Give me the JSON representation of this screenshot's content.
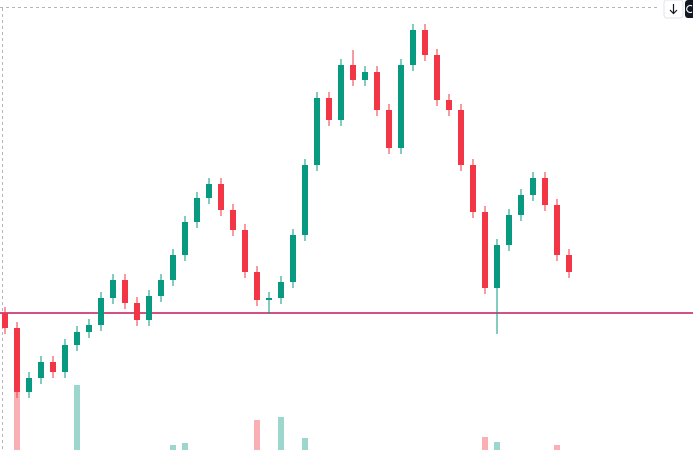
{
  "chart_data": {
    "type": "candlestick",
    "open": [
      137,
      122,
      58,
      72,
      88,
      78,
      105,
      118,
      125,
      152,
      170,
      147,
      130,
      154,
      170,
      195,
      228,
      252,
      266,
      240,
      220,
      178,
      150,
      152,
      168,
      215,
      285,
      352,
      330,
      385,
      370,
      378,
      340,
      302,
      385,
      420,
      395,
      350,
      340,
      285,
      238,
      162,
      205,
      235,
      255,
      272,
      245,
      195
    ],
    "high": [
      143,
      128,
      78,
      94,
      94,
      111,
      124,
      131,
      158,
      176,
      176,
      153,
      160,
      176,
      201,
      234,
      258,
      272,
      272,
      246,
      226,
      184,
      158,
      174,
      221,
      291,
      358,
      358,
      391,
      400,
      384,
      384,
      346,
      391,
      426,
      426,
      401,
      356,
      346,
      291,
      244,
      211,
      241,
      261,
      278,
      278,
      251,
      201
    ],
    "low": [
      116,
      52,
      52,
      66,
      72,
      72,
      99,
      112,
      119,
      146,
      141,
      124,
      124,
      148,
      164,
      189,
      222,
      246,
      234,
      214,
      172,
      144,
      136,
      146,
      162,
      209,
      279,
      324,
      324,
      364,
      364,
      334,
      296,
      296,
      379,
      389,
      344,
      334,
      279,
      232,
      156,
      116,
      199,
      229,
      249,
      239,
      189,
      172
    ],
    "close": [
      122,
      58,
      72,
      88,
      78,
      105,
      118,
      125,
      152,
      170,
      147,
      130,
      154,
      170,
      195,
      228,
      252,
      266,
      240,
      220,
      178,
      150,
      152,
      168,
      215,
      285,
      352,
      330,
      385,
      370,
      378,
      340,
      302,
      385,
      420,
      395,
      350,
      340,
      285,
      238,
      162,
      205,
      235,
      255,
      272,
      245,
      195,
      178
    ],
    "volume": [
      0,
      65,
      0,
      0,
      0,
      0,
      65,
      0,
      0,
      0,
      0,
      0,
      0,
      0,
      5,
      7,
      0,
      0,
      0,
      0,
      0,
      30,
      0,
      33,
      0,
      12,
      0,
      0,
      0,
      0,
      0,
      0,
      0,
      0,
      0,
      0,
      0,
      0,
      0,
      0,
      13,
      8,
      0,
      0,
      0,
      0,
      5,
      0
    ],
    "up_color": "#089981",
    "down_color": "#f23645",
    "level": 137,
    "level_color": "#c2185b",
    "ylim": [
      0,
      450
    ]
  }
}
